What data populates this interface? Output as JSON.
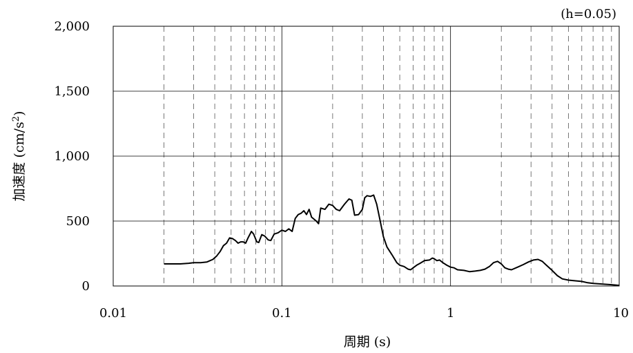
{
  "chart_data": {
    "type": "line",
    "annotation": "(h=0.05)",
    "xlabel": "周期 (s)",
    "ylabel_main": "加速度 (cm/s",
    "ylabel_sup": "2",
    "ylabel_close": ")",
    "xscale": "log",
    "xlim": [
      0.01,
      10
    ],
    "ylim": [
      0,
      2000
    ],
    "grid": true,
    "x_ticks": [
      {
        "value": 0.01,
        "label": "0.01"
      },
      {
        "value": 0.1,
        "label": "0.1"
      },
      {
        "value": 1,
        "label": "1"
      },
      {
        "value": 10,
        "label": "10"
      }
    ],
    "y_ticks": [
      {
        "value": 0,
        "label": "0"
      },
      {
        "value": 500,
        "label": "500"
      },
      {
        "value": 1000,
        "label": "1,000"
      },
      {
        "value": 1500,
        "label": "1,500"
      },
      {
        "value": 2000,
        "label": "2,000"
      }
    ],
    "series": [
      {
        "color": "#000000",
        "points": [
          [
            0.02,
            170
          ],
          [
            0.025,
            170
          ],
          [
            0.028,
            175
          ],
          [
            0.03,
            180
          ],
          [
            0.033,
            180
          ],
          [
            0.036,
            185
          ],
          [
            0.039,
            205
          ],
          [
            0.041,
            230
          ],
          [
            0.043,
            265
          ],
          [
            0.045,
            310
          ],
          [
            0.047,
            330
          ],
          [
            0.049,
            370
          ],
          [
            0.051,
            365
          ],
          [
            0.053,
            350
          ],
          [
            0.055,
            330
          ],
          [
            0.057,
            340
          ],
          [
            0.059,
            340
          ],
          [
            0.061,
            330
          ],
          [
            0.063,
            370
          ],
          [
            0.066,
            420
          ],
          [
            0.068,
            400
          ],
          [
            0.071,
            340
          ],
          [
            0.073,
            335
          ],
          [
            0.076,
            395
          ],
          [
            0.079,
            385
          ],
          [
            0.083,
            355
          ],
          [
            0.086,
            350
          ],
          [
            0.09,
            400
          ],
          [
            0.095,
            410
          ],
          [
            0.1,
            430
          ],
          [
            0.105,
            420
          ],
          [
            0.11,
            440
          ],
          [
            0.115,
            420
          ],
          [
            0.12,
            520
          ],
          [
            0.125,
            550
          ],
          [
            0.13,
            560
          ],
          [
            0.135,
            580
          ],
          [
            0.14,
            550
          ],
          [
            0.145,
            590
          ],
          [
            0.15,
            530
          ],
          [
            0.16,
            500
          ],
          [
            0.165,
            480
          ],
          [
            0.17,
            600
          ],
          [
            0.18,
            590
          ],
          [
            0.19,
            630
          ],
          [
            0.2,
            620
          ],
          [
            0.21,
            590
          ],
          [
            0.22,
            580
          ],
          [
            0.235,
            630
          ],
          [
            0.25,
            670
          ],
          [
            0.26,
            660
          ],
          [
            0.27,
            545
          ],
          [
            0.285,
            550
          ],
          [
            0.3,
            590
          ],
          [
            0.31,
            680
          ],
          [
            0.32,
            695
          ],
          [
            0.335,
            690
          ],
          [
            0.35,
            700
          ],
          [
            0.365,
            630
          ],
          [
            0.38,
            520
          ],
          [
            0.4,
            380
          ],
          [
            0.42,
            300
          ],
          [
            0.45,
            240
          ],
          [
            0.48,
            180
          ],
          [
            0.5,
            160
          ],
          [
            0.53,
            150
          ],
          [
            0.56,
            130
          ],
          [
            0.58,
            125
          ],
          [
            0.6,
            140
          ],
          [
            0.63,
            160
          ],
          [
            0.66,
            175
          ],
          [
            0.7,
            195
          ],
          [
            0.75,
            200
          ],
          [
            0.78,
            215
          ],
          [
            0.8,
            210
          ],
          [
            0.83,
            195
          ],
          [
            0.86,
            200
          ],
          [
            0.9,
            180
          ],
          [
            0.95,
            160
          ],
          [
            1.0,
            145
          ],
          [
            1.05,
            140
          ],
          [
            1.1,
            125
          ],
          [
            1.2,
            120
          ],
          [
            1.3,
            110
          ],
          [
            1.4,
            115
          ],
          [
            1.5,
            120
          ],
          [
            1.6,
            130
          ],
          [
            1.7,
            150
          ],
          [
            1.8,
            180
          ],
          [
            1.9,
            190
          ],
          [
            2.0,
            170
          ],
          [
            2.1,
            140
          ],
          [
            2.2,
            130
          ],
          [
            2.3,
            125
          ],
          [
            2.5,
            145
          ],
          [
            2.7,
            165
          ],
          [
            2.9,
            185
          ],
          [
            3.1,
            200
          ],
          [
            3.3,
            205
          ],
          [
            3.5,
            190
          ],
          [
            3.7,
            160
          ],
          [
            4.0,
            120
          ],
          [
            4.3,
            80
          ],
          [
            4.6,
            55
          ],
          [
            5.0,
            45
          ],
          [
            5.5,
            40
          ],
          [
            6.0,
            35
          ],
          [
            6.5,
            25
          ],
          [
            7.0,
            20
          ],
          [
            8.0,
            15
          ],
          [
            9.0,
            10
          ],
          [
            10,
            5
          ]
        ]
      }
    ]
  }
}
